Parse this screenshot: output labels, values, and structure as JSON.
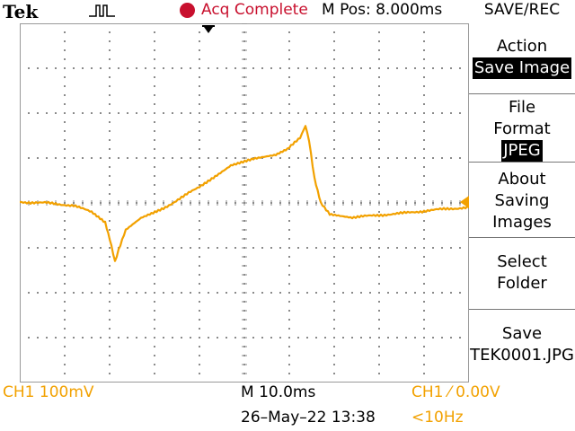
{
  "header": {
    "brand": "Tek",
    "trigger_icon": "pulse-icon",
    "status_indicator_color": "#c8102e",
    "status": "Acq Complete",
    "m_pos": "M Pos: 8.000ms",
    "menu_title": "SAVE/REC"
  },
  "side_menu": {
    "action_label": "Action",
    "action_value": "Save Image",
    "file_format_line1": "File",
    "file_format_line2": "Format",
    "file_format_value": "JPEG",
    "about_line1": "About",
    "about_line2": "Saving",
    "about_line3": "Images",
    "select_line1": "Select",
    "select_line2": "Folder",
    "save_label": "Save",
    "save_filename": "TEK0001.JPG"
  },
  "channel": {
    "marker": "1",
    "color": "#f2a100"
  },
  "footer": {
    "ch_scale": "CH1  100mV",
    "timebase": "M 10.0ms",
    "trigger": "CH1 ⁄ 0.00V",
    "datetime": "26–May–22 13:38",
    "frequency": "<10Hz"
  },
  "colors": {
    "trace": "#f2a100",
    "grid": "#808080",
    "background": "#ffffff"
  }
}
